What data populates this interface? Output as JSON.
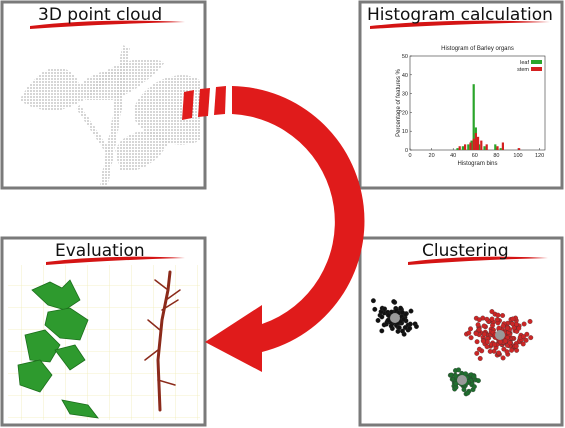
{
  "panels": [
    {
      "title": "3D point cloud"
    },
    {
      "title": "Histogram calculation"
    },
    {
      "title": "Evaluation"
    },
    {
      "title": "Clustering"
    }
  ],
  "histogram": {
    "type": "bar",
    "title": "Histogram of Barley organs",
    "x_label": "Histogram bins",
    "y_label": "Percentage of features %",
    "xlim": [
      0,
      125
    ],
    "ylim": [
      0,
      50
    ],
    "xticks": [
      0,
      20,
      40,
      60,
      80,
      100,
      120
    ],
    "yticks": [
      0,
      10,
      20,
      30,
      40,
      50
    ],
    "x": [
      45,
      50,
      55,
      58,
      60,
      62,
      65,
      70,
      80,
      85,
      100
    ],
    "series": [
      {
        "name": "leaf",
        "color": "#2aa52a",
        "values": [
          1,
          2,
          3,
          5,
          35,
          12,
          3,
          2,
          3,
          1,
          0
        ]
      },
      {
        "name": "stem",
        "color": "#d42020",
        "values": [
          2,
          3,
          4,
          6,
          9,
          7,
          5,
          3,
          2,
          4,
          1
        ]
      }
    ]
  }
}
